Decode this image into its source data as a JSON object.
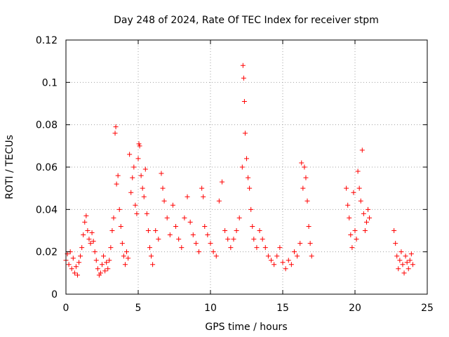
{
  "chart_data": {
    "type": "scatter",
    "title": "Day 248 of 2024, Rate Of TEC Index for receiver stpm",
    "xlabel": "GPS time / hours",
    "ylabel": "ROTI / TECUs",
    "xlim": [
      0,
      25
    ],
    "ylim": [
      0,
      0.12
    ],
    "xticks": [
      0,
      5,
      10,
      15,
      20,
      25
    ],
    "xtick_labels": [
      "0",
      "5",
      "10",
      "15",
      "20",
      "25"
    ],
    "yticks": [
      0,
      0.02,
      0.04,
      0.06,
      0.08,
      0.1,
      0.12
    ],
    "ytick_labels": [
      "0",
      "0.02",
      "0.04",
      "0.06",
      "0.08",
      "0.1",
      "0.12"
    ],
    "grid": true,
    "marker": "plus",
    "color": "#ff0000",
    "series": [
      {
        "points": [
          [
            0.0,
            0.016
          ],
          [
            0.1,
            0.019
          ],
          [
            0.2,
            0.014
          ],
          [
            0.3,
            0.02
          ],
          [
            0.4,
            0.012
          ],
          [
            0.5,
            0.017
          ],
          [
            0.6,
            0.01
          ],
          [
            0.7,
            0.013
          ],
          [
            0.8,
            0.009
          ],
          [
            0.9,
            0.015
          ],
          [
            1.0,
            0.018
          ],
          [
            1.1,
            0.022
          ],
          [
            1.2,
            0.028
          ],
          [
            1.3,
            0.034
          ],
          [
            1.4,
            0.037
          ],
          [
            1.5,
            0.03
          ],
          [
            1.6,
            0.026
          ],
          [
            1.7,
            0.024
          ],
          [
            1.8,
            0.029
          ],
          [
            1.9,
            0.025
          ],
          [
            2.0,
            0.02
          ],
          [
            2.1,
            0.016
          ],
          [
            2.2,
            0.012
          ],
          [
            2.3,
            0.009
          ],
          [
            2.4,
            0.01
          ],
          [
            2.5,
            0.014
          ],
          [
            2.6,
            0.018
          ],
          [
            2.7,
            0.011
          ],
          [
            2.8,
            0.015
          ],
          [
            2.9,
            0.012
          ],
          [
            3.0,
            0.016
          ],
          [
            3.1,
            0.022
          ],
          [
            3.2,
            0.03
          ],
          [
            3.3,
            0.036
          ],
          [
            3.4,
            0.076
          ],
          [
            3.45,
            0.079
          ],
          [
            3.5,
            0.052
          ],
          [
            3.6,
            0.056
          ],
          [
            3.7,
            0.04
          ],
          [
            3.8,
            0.032
          ],
          [
            3.9,
            0.024
          ],
          [
            4.0,
            0.018
          ],
          [
            4.1,
            0.014
          ],
          [
            4.2,
            0.02
          ],
          [
            4.3,
            0.017
          ],
          [
            4.4,
            0.066
          ],
          [
            4.5,
            0.048
          ],
          [
            4.6,
            0.055
          ],
          [
            4.7,
            0.06
          ],
          [
            4.8,
            0.042
          ],
          [
            4.9,
            0.038
          ],
          [
            5.0,
            0.064
          ],
          [
            5.05,
            0.071
          ],
          [
            5.1,
            0.07
          ],
          [
            5.2,
            0.056
          ],
          [
            5.3,
            0.05
          ],
          [
            5.4,
            0.046
          ],
          [
            5.5,
            0.059
          ],
          [
            5.6,
            0.038
          ],
          [
            5.7,
            0.03
          ],
          [
            5.8,
            0.022
          ],
          [
            5.9,
            0.018
          ],
          [
            6.0,
            0.014
          ],
          [
            6.2,
            0.03
          ],
          [
            6.4,
            0.026
          ],
          [
            6.6,
            0.057
          ],
          [
            6.7,
            0.05
          ],
          [
            6.8,
            0.044
          ],
          [
            7.0,
            0.036
          ],
          [
            7.2,
            0.028
          ],
          [
            7.4,
            0.042
          ],
          [
            7.6,
            0.032
          ],
          [
            7.8,
            0.026
          ],
          [
            8.0,
            0.022
          ],
          [
            8.2,
            0.036
          ],
          [
            8.4,
            0.046
          ],
          [
            8.6,
            0.034
          ],
          [
            8.8,
            0.028
          ],
          [
            9.0,
            0.024
          ],
          [
            9.2,
            0.02
          ],
          [
            9.4,
            0.05
          ],
          [
            9.5,
            0.046
          ],
          [
            9.6,
            0.032
          ],
          [
            9.8,
            0.028
          ],
          [
            10.0,
            0.024
          ],
          [
            10.2,
            0.02
          ],
          [
            10.4,
            0.018
          ],
          [
            10.6,
            0.044
          ],
          [
            10.8,
            0.053
          ],
          [
            11.0,
            0.03
          ],
          [
            11.2,
            0.026
          ],
          [
            11.4,
            0.022
          ],
          [
            11.6,
            0.026
          ],
          [
            11.8,
            0.03
          ],
          [
            12.0,
            0.036
          ],
          [
            12.2,
            0.06
          ],
          [
            12.25,
            0.108
          ],
          [
            12.3,
            0.102
          ],
          [
            12.35,
            0.091
          ],
          [
            12.4,
            0.076
          ],
          [
            12.5,
            0.064
          ],
          [
            12.6,
            0.055
          ],
          [
            12.7,
            0.05
          ],
          [
            12.8,
            0.04
          ],
          [
            12.9,
            0.032
          ],
          [
            13.0,
            0.026
          ],
          [
            13.2,
            0.022
          ],
          [
            13.4,
            0.03
          ],
          [
            13.6,
            0.026
          ],
          [
            13.8,
            0.022
          ],
          [
            14.0,
            0.018
          ],
          [
            14.2,
            0.016
          ],
          [
            14.4,
            0.014
          ],
          [
            14.6,
            0.018
          ],
          [
            14.8,
            0.022
          ],
          [
            15.0,
            0.015
          ],
          [
            15.2,
            0.012
          ],
          [
            15.4,
            0.016
          ],
          [
            15.6,
            0.014
          ],
          [
            15.8,
            0.02
          ],
          [
            16.0,
            0.018
          ],
          [
            16.2,
            0.024
          ],
          [
            16.3,
            0.062
          ],
          [
            16.4,
            0.05
          ],
          [
            16.5,
            0.06
          ],
          [
            16.6,
            0.055
          ],
          [
            16.7,
            0.044
          ],
          [
            16.8,
            0.032
          ],
          [
            16.9,
            0.024
          ],
          [
            17.0,
            0.018
          ],
          [
            19.4,
            0.05
          ],
          [
            19.5,
            0.042
          ],
          [
            19.6,
            0.036
          ],
          [
            19.7,
            0.028
          ],
          [
            19.8,
            0.022
          ],
          [
            19.9,
            0.048
          ],
          [
            20.0,
            0.03
          ],
          [
            20.1,
            0.026
          ],
          [
            20.2,
            0.058
          ],
          [
            20.3,
            0.05
          ],
          [
            20.4,
            0.044
          ],
          [
            20.5,
            0.068
          ],
          [
            20.6,
            0.038
          ],
          [
            20.7,
            0.03
          ],
          [
            20.8,
            0.034
          ],
          [
            20.9,
            0.04
          ],
          [
            21.0,
            0.036
          ],
          [
            22.7,
            0.03
          ],
          [
            22.8,
            0.024
          ],
          [
            22.9,
            0.018
          ],
          [
            23.0,
            0.012
          ],
          [
            23.1,
            0.016
          ],
          [
            23.2,
            0.02
          ],
          [
            23.3,
            0.014
          ],
          [
            23.4,
            0.01
          ],
          [
            23.5,
            0.018
          ],
          [
            23.6,
            0.015
          ],
          [
            23.7,
            0.012
          ],
          [
            23.8,
            0.016
          ],
          [
            23.9,
            0.019
          ],
          [
            24.0,
            0.014
          ]
        ]
      }
    ]
  }
}
